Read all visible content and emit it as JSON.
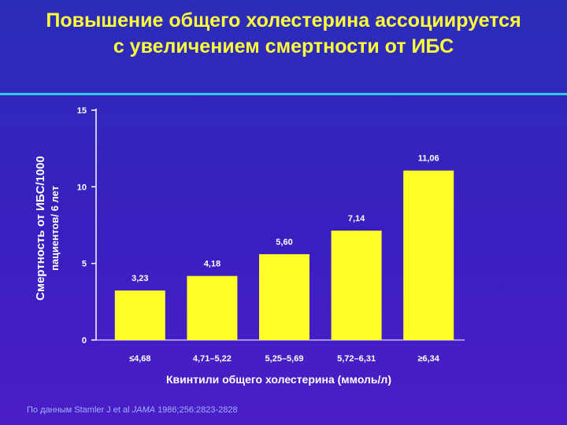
{
  "title_lines": [
    "Повышение общего холестерина ассоциируется",
    "с увеличением смертности от ИБС"
  ],
  "source": {
    "prefix": "По данным Stamler J et al",
    "journal": "JAMA",
    "suffix": "1986;256:2823-2828"
  },
  "colors": {
    "bar": "#ffff2a",
    "title": "#ffff3a",
    "axis_text": "#ffffff",
    "rule": "#38c6e8"
  },
  "chart_data": {
    "type": "bar",
    "categories": [
      "≤4,68",
      "4,71–5,22",
      "5,25–5,69",
      "5,72–6,31",
      "≥6,34"
    ],
    "values": [
      3.23,
      4.18,
      5.6,
      7.14,
      11.06
    ],
    "value_labels": [
      "3,23",
      "4,18",
      "5,60",
      "7,14",
      "11,06"
    ],
    "xlabel": "Квинтили общего холестерина (ммоль/л)",
    "ylabel_lines": [
      "Смертность от ИБС/1000",
      "пациентов/ 6 лет"
    ],
    "ylim": [
      0,
      15
    ],
    "yticks": [
      0,
      5,
      10,
      15
    ],
    "grid": false
  }
}
